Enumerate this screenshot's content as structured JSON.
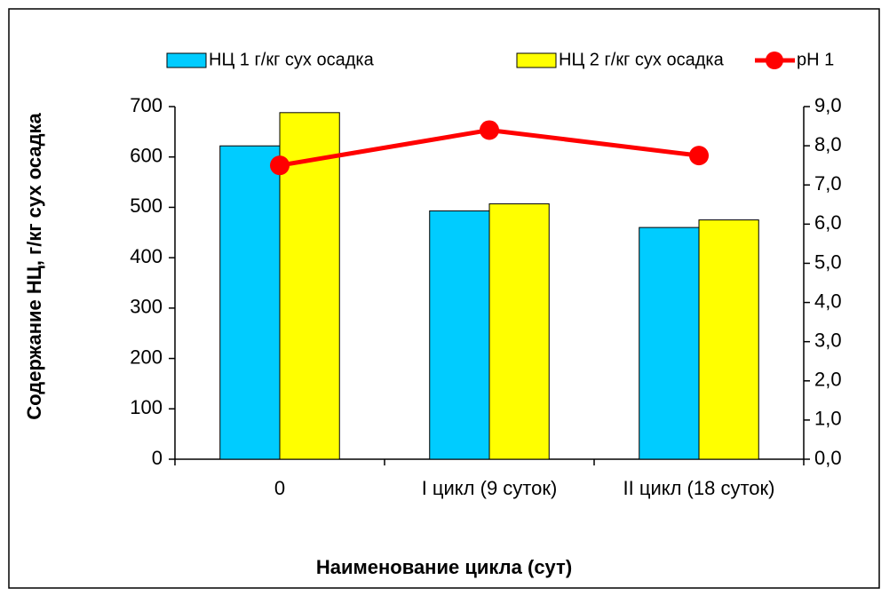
{
  "chart_data": {
    "type": "bar",
    "categories": [
      "0",
      "I цикл (9 суток)",
      "II цикл (18 суток)"
    ],
    "series": [
      {
        "name": "НЦ 1 г/кг сух осадка",
        "color": "#00ccff",
        "type": "bar",
        "values": [
          622,
          493,
          460
        ]
      },
      {
        "name": "НЦ 2 г/кг сух осадка",
        "color": "#ffff00",
        "type": "bar",
        "values": [
          688,
          507,
          475
        ]
      },
      {
        "name": "pH 1",
        "color": "#ff0000",
        "type": "line",
        "axis": "y2",
        "values": [
          7.5,
          8.4,
          7.75
        ]
      }
    ],
    "ylabel": "Содержание НЦ, г/кг сух осадка",
    "xlabel": "Наименование цикла (сут)",
    "ylim": [
      0,
      700
    ],
    "yticks": [
      0,
      100,
      200,
      300,
      400,
      500,
      600,
      700
    ],
    "y2lim": [
      0,
      9
    ],
    "y2ticks": [
      {
        "value": 0,
        "label": "0,0"
      },
      {
        "value": 1,
        "label": "1,0"
      },
      {
        "value": 2,
        "label": "2,0"
      },
      {
        "value": 3,
        "label": "3,0"
      },
      {
        "value": 4,
        "label": "4,0"
      },
      {
        "value": 5,
        "label": "5,0"
      },
      {
        "value": 6,
        "label": "6,0"
      },
      {
        "value": 7,
        "label": "7,0"
      },
      {
        "value": 8,
        "label": "8,0"
      },
      {
        "value": 9,
        "label": "9,0"
      }
    ],
    "grid": false,
    "legend": "top"
  }
}
